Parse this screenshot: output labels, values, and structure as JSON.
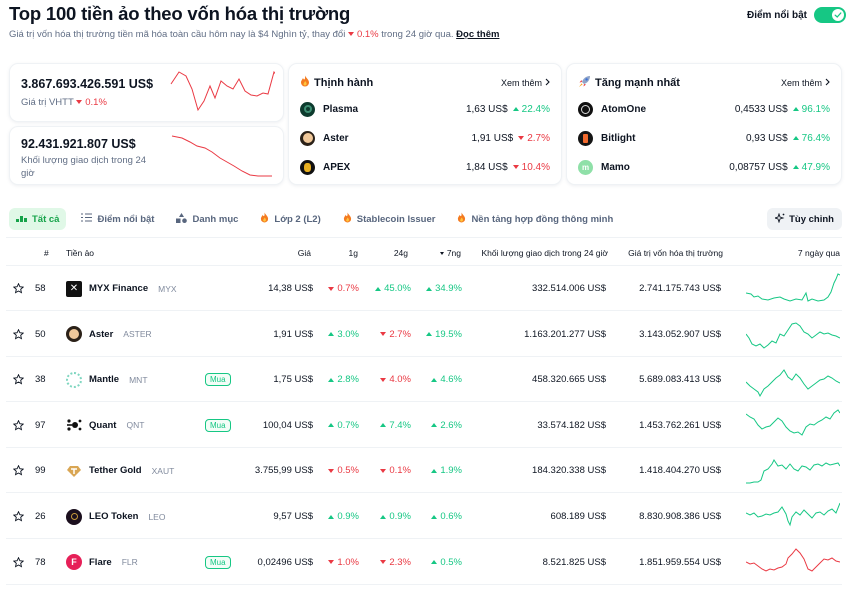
{
  "header": {
    "title": "Top 100 tiền ảo theo vốn hóa thị trường",
    "subtitle_prefix": "Giá trị vốn hóa thị trường tiền mã hóa toàn cầu hôm nay là $4 Nghìn tỷ, thay đổi",
    "subtitle_change": "0.1%",
    "subtitle_suffix": "trong 24 giờ qua.",
    "read_more": "Đọc thêm",
    "highlight_toggle_label": "Điểm nổi bật",
    "highlight_toggle_on": true
  },
  "colors": {
    "positive": "#16c784",
    "negative": "#ea3943",
    "text": "#0d1421",
    "muted": "#616e85"
  },
  "metrics": {
    "market_cap": {
      "value": "3.867.693.426.591 US$",
      "label": "Giá trị VHTT",
      "change": "0.1%",
      "change_dir": "down"
    },
    "volume": {
      "value": "92.431.921.807 US$",
      "label": "Khối lượng giao dịch trong 24 giờ"
    }
  },
  "trending": {
    "title": "Thịnh hành",
    "see_more": "Xem thêm",
    "items": [
      {
        "name": "Plasma",
        "price": "1,63 US$",
        "change": "22.4%",
        "dir": "up"
      },
      {
        "name": "Aster",
        "price": "1,91 US$",
        "change": "2.7%",
        "dir": "down"
      },
      {
        "name": "APEX",
        "price": "1,84 US$",
        "change": "10.4%",
        "dir": "down"
      }
    ]
  },
  "top_gainers": {
    "title": "Tăng mạnh nhất",
    "see_more": "Xem thêm",
    "items": [
      {
        "name": "AtomOne",
        "price": "0,4533 US$",
        "change": "96.1%",
        "dir": "up"
      },
      {
        "name": "Bitlight",
        "price": "0,93 US$",
        "change": "76.4%",
        "dir": "up"
      },
      {
        "name": "Mamo",
        "price": "0,08757 US$",
        "change": "47.9%",
        "dir": "up"
      }
    ]
  },
  "tabs": [
    {
      "label": "Tất cả",
      "icon": "chart-bars-icon",
      "active": true
    },
    {
      "label": "Điểm nổi bật",
      "icon": "list-icon",
      "active": false
    },
    {
      "label": "Danh mục",
      "icon": "categories-icon",
      "active": false
    },
    {
      "label": "Lớp 2 (L2)",
      "icon": "fire-icon",
      "active": false
    },
    {
      "label": "Stablecoin Issuer",
      "icon": "fire-icon",
      "active": false
    },
    {
      "label": "Nền tảng hợp đồng thông minh",
      "icon": "fire-icon",
      "active": false
    }
  ],
  "customize_label": "Tùy chỉnh",
  "table": {
    "columns": {
      "rank": "#",
      "name": "Tiền ảo",
      "price": "Giá",
      "change_1h": "1g",
      "change_24h": "24g",
      "change_7d": "7ng",
      "volume": "Khối lượng giao dịch trong 24 giờ",
      "market_cap": "Giá trị vốn hóa thị trường",
      "chart": "7 ngày qua"
    },
    "sort_column": "change_7d",
    "buy_label": "Mua",
    "rows": [
      {
        "rank": "58",
        "name": "MYX Finance",
        "symbol": "MYX",
        "buy": false,
        "price": "14,38 US$",
        "h1": "0.7%",
        "h1_dir": "down",
        "h24": "45.0%",
        "h24_dir": "up",
        "d7": "34.9%",
        "d7_dir": "up",
        "volume": "332.514.006 US$",
        "market_cap": "2.741.175.743 US$",
        "trend": "up"
      },
      {
        "rank": "50",
        "name": "Aster",
        "symbol": "ASTER",
        "buy": false,
        "price": "1,91 US$",
        "h1": "3.0%",
        "h1_dir": "up",
        "h24": "2.7%",
        "h24_dir": "down",
        "d7": "19.5%",
        "d7_dir": "up",
        "volume": "1.163.201.277 US$",
        "market_cap": "3.143.052.907 US$",
        "trend": "up"
      },
      {
        "rank": "38",
        "name": "Mantle",
        "symbol": "MNT",
        "buy": true,
        "price": "1,75 US$",
        "h1": "2.8%",
        "h1_dir": "up",
        "h24": "4.0%",
        "h24_dir": "down",
        "d7": "4.6%",
        "d7_dir": "up",
        "volume": "458.320.665 US$",
        "market_cap": "5.689.083.413 US$",
        "trend": "up"
      },
      {
        "rank": "97",
        "name": "Quant",
        "symbol": "QNT",
        "buy": true,
        "price": "100,04 US$",
        "h1": "0.7%",
        "h1_dir": "up",
        "h24": "7.4%",
        "h24_dir": "up",
        "d7": "2.6%",
        "d7_dir": "up",
        "volume": "33.574.182 US$",
        "market_cap": "1.453.762.261 US$",
        "trend": "up"
      },
      {
        "rank": "99",
        "name": "Tether Gold",
        "symbol": "XAUT",
        "buy": false,
        "price": "3.755,99 US$",
        "h1": "0.5%",
        "h1_dir": "down",
        "h24": "0.1%",
        "h24_dir": "down",
        "d7": "1.9%",
        "d7_dir": "up",
        "volume": "184.320.338 US$",
        "market_cap": "1.418.404.270 US$",
        "trend": "up"
      },
      {
        "rank": "26",
        "name": "LEO Token",
        "symbol": "LEO",
        "buy": false,
        "price": "9,57 US$",
        "h1": "0.9%",
        "h1_dir": "up",
        "h24": "0.9%",
        "h24_dir": "up",
        "d7": "0.6%",
        "d7_dir": "up",
        "volume": "608.189 US$",
        "market_cap": "8.830.908.386 US$",
        "trend": "up"
      },
      {
        "rank": "78",
        "name": "Flare",
        "symbol": "FLR",
        "buy": true,
        "price": "0,02496 US$",
        "h1": "1.0%",
        "h1_dir": "down",
        "h24": "2.3%",
        "h24_dir": "down",
        "d7": "0.5%",
        "d7_dir": "up",
        "volume": "8.521.825 US$",
        "market_cap": "1.851.959.554 US$",
        "trend": "down"
      }
    ]
  }
}
